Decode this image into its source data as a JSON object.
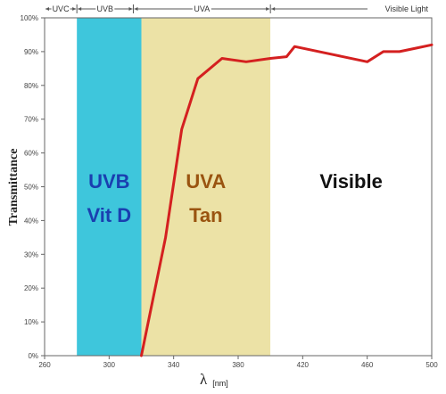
{
  "chart_data": {
    "type": "line",
    "xlabel": "λ",
    "xlabel_unit": "[nm]",
    "ylabel": "Transmittance",
    "xlim": [
      260,
      500
    ],
    "ylim": [
      0,
      100
    ],
    "x_ticks": [
      260,
      300,
      340,
      380,
      420,
      460,
      500
    ],
    "x_tick_labels": [
      "260",
      "300",
      "340",
      "380",
      "420",
      "460",
      "500"
    ],
    "y_ticks": [
      0,
      10,
      20,
      30,
      40,
      50,
      60,
      70,
      80,
      90,
      100
    ],
    "y_tick_labels": [
      "0%",
      "10%",
      "20%",
      "30%",
      "40%",
      "50%",
      "60%",
      "70%",
      "80%",
      "90%",
      "100%"
    ],
    "grid": false,
    "series": [
      {
        "color": "#d42020",
        "x": [
          320,
          335,
          345,
          355,
          370,
          385,
          400,
          410,
          415,
          440,
          460,
          470,
          480,
          490,
          500
        ],
        "y": [
          0,
          35,
          67,
          82,
          88,
          87,
          88,
          88.5,
          91.5,
          89,
          87,
          90,
          90,
          91,
          92
        ]
      }
    ],
    "regions": [
      {
        "label": "UVB",
        "sublabel": "Vit D",
        "x_start": 280,
        "x_end": 320,
        "color": "#3ec6dc",
        "text_color": "#1a3fb0"
      },
      {
        "label": "UVA",
        "sublabel": "Tan",
        "x_start": 320,
        "x_end": 400,
        "color": "#ece2a6",
        "text_color": "#9a5410"
      },
      {
        "label": "Visible",
        "sublabel": "",
        "x_start": 400,
        "x_end": 500,
        "color": "#ffffff",
        "text_color": "#111111"
      }
    ],
    "top_bands": [
      {
        "label": "UVC",
        "x_start": 260,
        "x_end": 280
      },
      {
        "label": "UVB",
        "x_start": 280,
        "x_end": 315
      },
      {
        "label": "UVA",
        "x_start": 315,
        "x_end": 400
      },
      {
        "label": "Visible Light",
        "x_start": 400,
        "x_end": 500
      }
    ]
  }
}
